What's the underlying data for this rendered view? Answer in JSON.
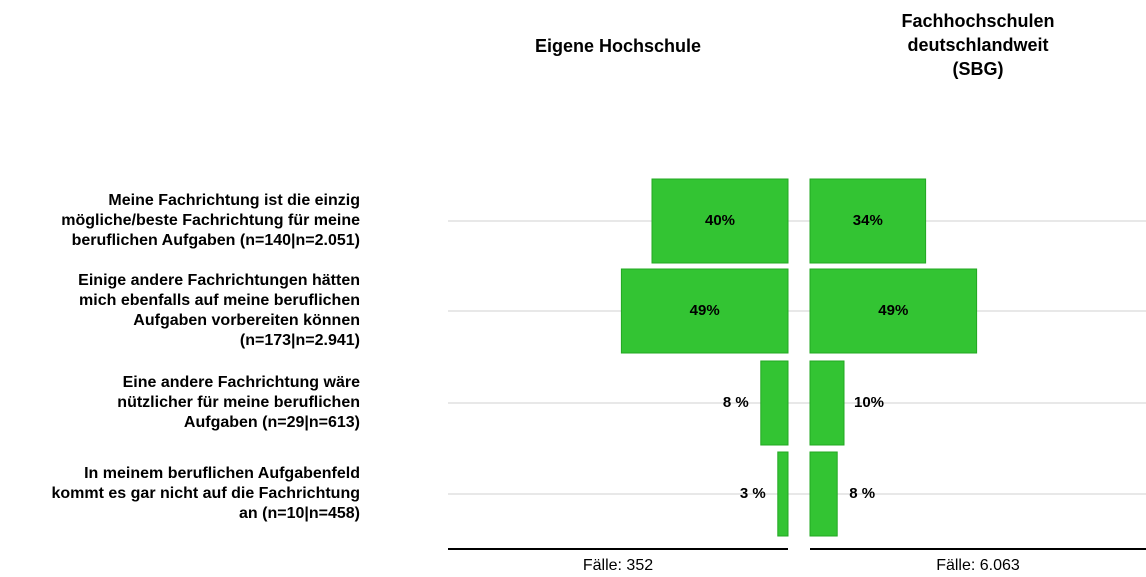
{
  "chart_data": {
    "type": "butterfly-bar",
    "categories": [
      [
        "Meine Fachrichtung ist die einzig",
        "mögliche/beste Fachrichtung für meine",
        "beruflichen Aufgaben (n=140|n=2.051)"
      ],
      [
        "Einige andere Fachrichtungen hätten",
        "mich ebenfalls auf meine beruflichen",
        "Aufgaben vorbereiten können",
        "(n=173|n=2.941)"
      ],
      [
        "Eine andere Fachrichtung wäre",
        "nützlicher für meine beruflichen",
        "Aufgaben (n=29|n=613)"
      ],
      [
        "In meinem beruflichen Aufgabenfeld",
        "kommt es gar nicht auf die Fachrichtung",
        "an (n=10|n=458)"
      ]
    ],
    "series": [
      {
        "name": [
          "Eigene Hochschule"
        ],
        "color": "#33c433",
        "values": [
          40,
          49,
          8,
          3
        ],
        "value_labels": [
          "40%",
          "49%",
          "8 %",
          "3 %"
        ],
        "cases": "Fälle: 352"
      },
      {
        "name": [
          "Fachhochschulen",
          "deutschlandweit",
          "(SBG)"
        ],
        "color": "#33c433",
        "values": [
          34,
          49,
          10,
          8
        ],
        "value_labels": [
          "34%",
          "49%",
          "10%",
          "8 %"
        ],
        "cases": "Fälle: 6.063"
      }
    ],
    "xlim": [
      0,
      100
    ],
    "grid": true
  }
}
